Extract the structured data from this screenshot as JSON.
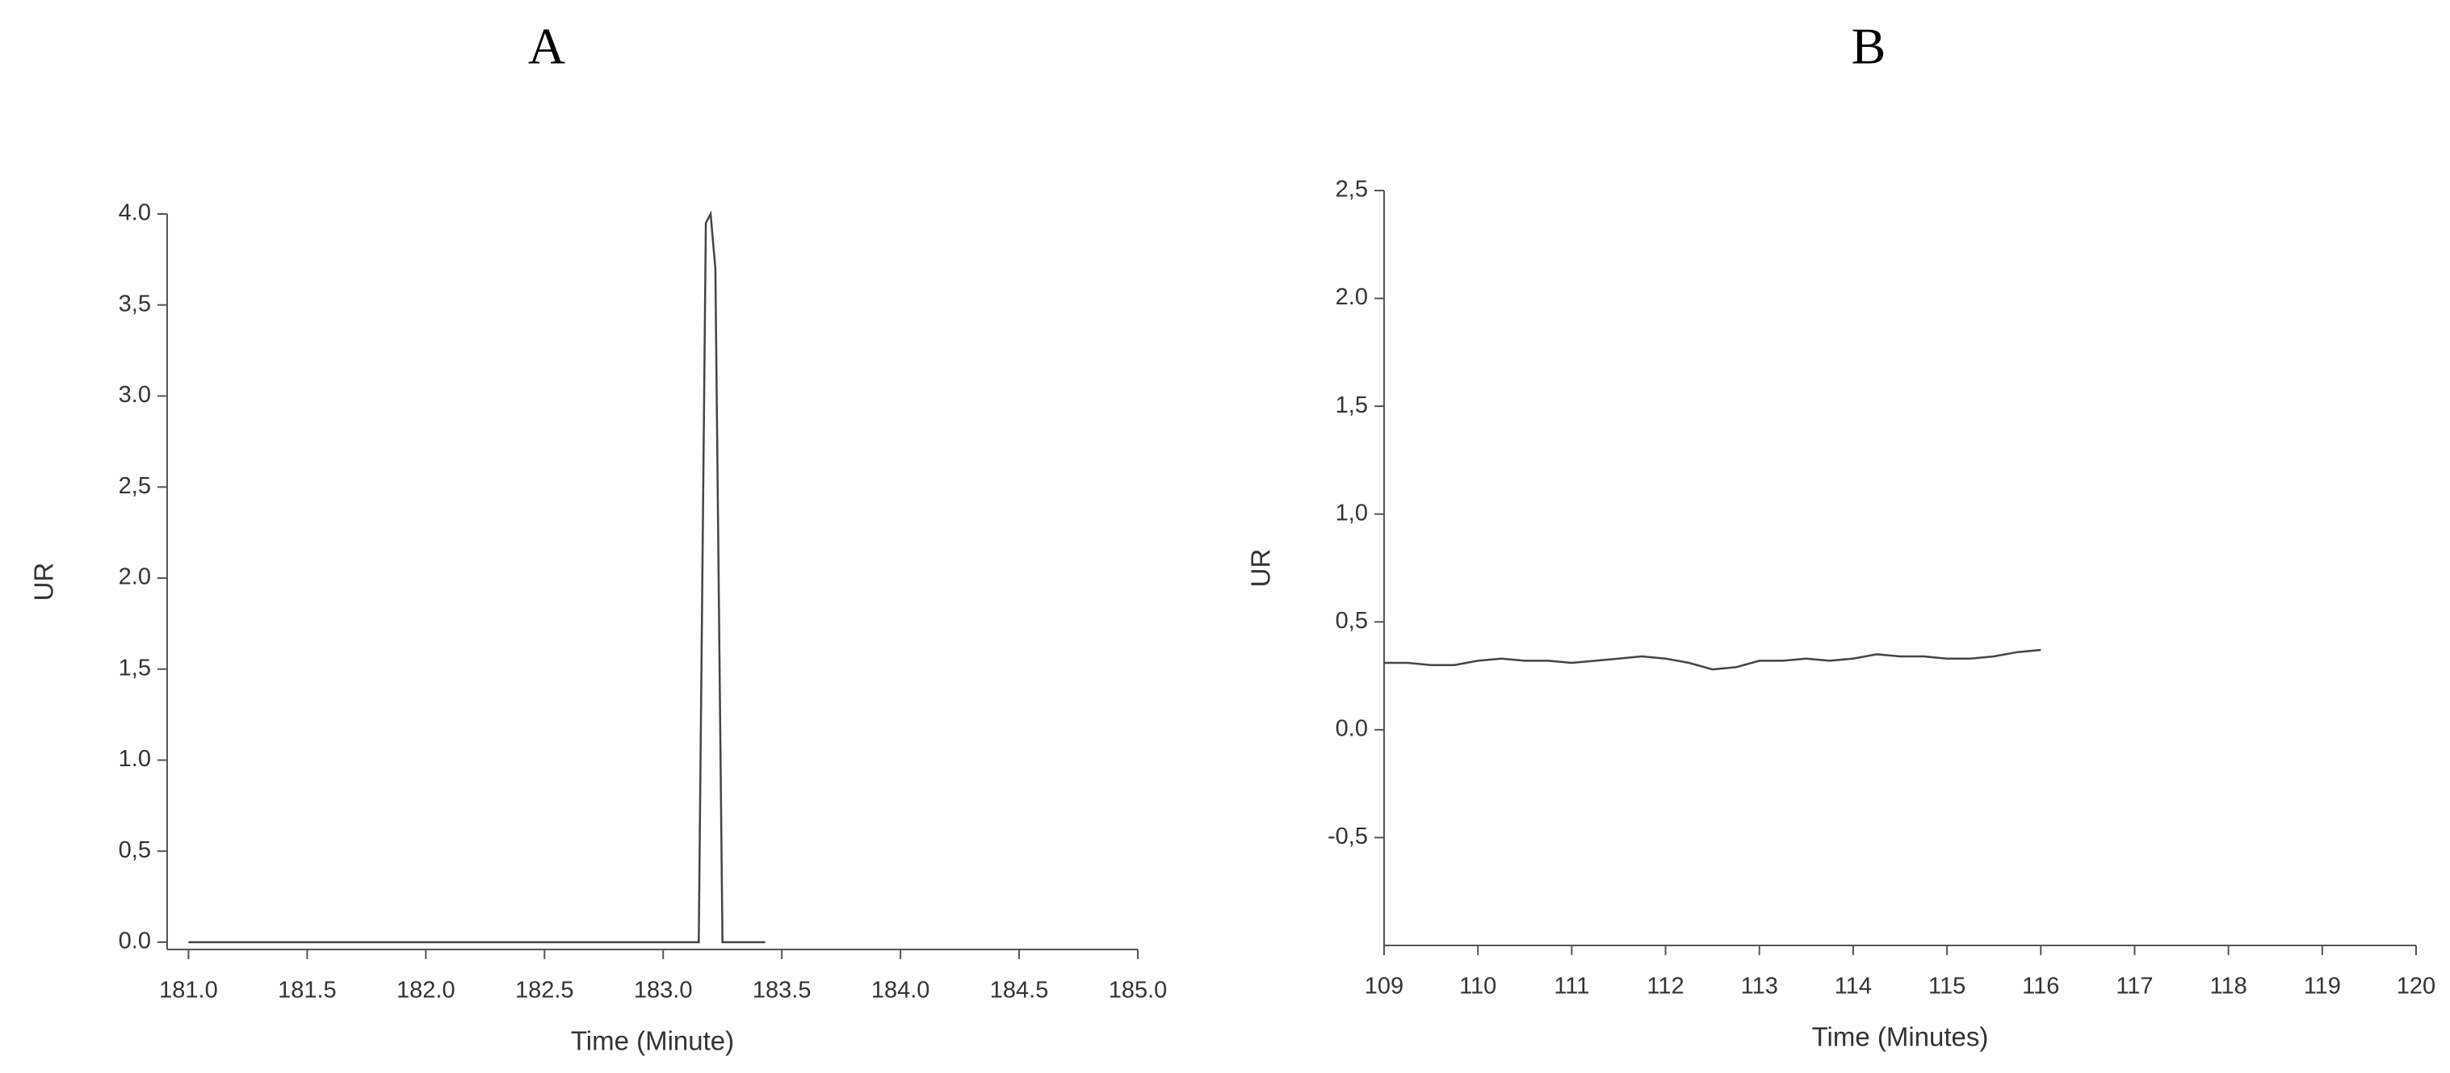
{
  "chart_data": [
    {
      "type": "line",
      "title": "A",
      "x_label": "Time (Minute)",
      "y_label": "UR",
      "color": "#444444",
      "xlim": [
        180.91,
        185.0
      ],
      "xticks": [
        {
          "value": 181,
          "label": "181.0"
        },
        {
          "value": 181.5,
          "label": "181.5"
        },
        {
          "value": 182,
          "label": "182.0"
        },
        {
          "value": 182.5,
          "label": "182.5"
        },
        {
          "value": 183,
          "label": "183.0"
        },
        {
          "value": 183.5,
          "label": "183.5"
        },
        {
          "value": 184,
          "label": "184.0"
        },
        {
          "value": 184.5,
          "label": "184.5"
        },
        {
          "value": 185,
          "label": "185.0"
        }
      ],
      "ylim": [
        -0.04,
        4.0
      ],
      "yticks": [
        {
          "value": 0,
          "label": "0.0"
        },
        {
          "value": 0.5,
          "label": "0,5"
        },
        {
          "value": 1,
          "label": "1.0"
        },
        {
          "value": 1.5,
          "label": "1,5"
        },
        {
          "value": 2,
          "label": "2.0"
        },
        {
          "value": 2.5,
          "label": "2,5"
        },
        {
          "value": 3,
          "label": "3.0"
        },
        {
          "value": 3.5,
          "label": "3,5"
        },
        {
          "value": 4,
          "label": "4.0"
        }
      ],
      "x": [
        181.0,
        182.0,
        183.0,
        183.15,
        183.18,
        183.2,
        183.22,
        183.25,
        183.3,
        183.43
      ],
      "values": [
        0,
        0,
        0,
        0,
        3.95,
        4.0,
        3.7,
        0,
        0,
        0
      ]
    },
    {
      "type": "line",
      "title": "B",
      "x_label": "Time (Minutes)",
      "y_label": "UR",
      "color": "#444444",
      "xlim": [
        109,
        120
      ],
      "xticks": [
        109,
        110,
        111,
        112,
        113,
        114,
        115,
        116,
        117,
        118,
        119,
        120
      ],
      "ylim": [
        -1.0,
        2.5
      ],
      "yticks": [
        {
          "value": -0.5,
          "label": "-0,5"
        },
        {
          "value": 0,
          "label": "0.0"
        },
        {
          "value": 0.5,
          "label": "0,5"
        },
        {
          "value": 1,
          "label": "1,0"
        },
        {
          "value": 1.5,
          "label": "1,5"
        },
        {
          "value": 2,
          "label": "2.0"
        },
        {
          "value": 2.5,
          "label": "2,5"
        }
      ],
      "x": [
        109,
        109.25,
        109.5,
        109.75,
        110,
        110.25,
        110.5,
        110.75,
        111,
        111.25,
        111.5,
        111.75,
        112,
        112.25,
        112.5,
        112.75,
        113,
        113.25,
        113.5,
        113.75,
        114,
        114.25,
        114.5,
        114.75,
        115,
        115.25,
        115.5,
        115.75,
        116
      ],
      "values": [
        0.31,
        0.31,
        0.3,
        0.3,
        0.32,
        0.33,
        0.32,
        0.32,
        0.31,
        0.32,
        0.33,
        0.34,
        0.33,
        0.31,
        0.28,
        0.29,
        0.32,
        0.32,
        0.33,
        0.32,
        0.33,
        0.35,
        0.34,
        0.34,
        0.33,
        0.33,
        0.34,
        0.36,
        0.37
      ]
    }
  ]
}
